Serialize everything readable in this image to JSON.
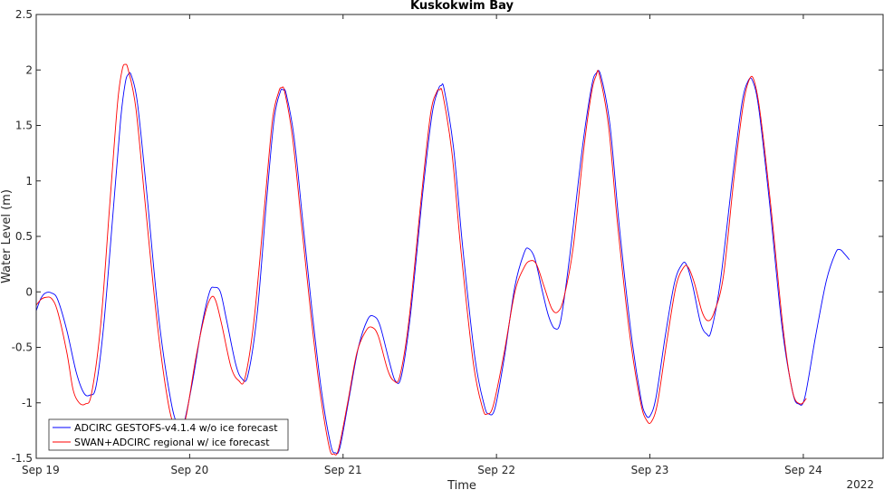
{
  "chart_data": {
    "type": "line",
    "title": "Kuskokwim Bay",
    "xlabel": "Time",
    "ylabel": "Water Level (m)",
    "x_unit": "days since Sep 19, 2022",
    "xlim": [
      0,
      5.52
    ],
    "ylim": [
      -1.5,
      2.5
    ],
    "xticks": [
      {
        "label": "Sep 19",
        "value": 0
      },
      {
        "label": "Sep 20",
        "value": 1
      },
      {
        "label": "Sep 21",
        "value": 2
      },
      {
        "label": "Sep 22",
        "value": 3
      },
      {
        "label": "Sep 23",
        "value": 4
      },
      {
        "label": "Sep 24",
        "value": 5
      }
    ],
    "year_label": "2022",
    "yticks": [
      -1.5,
      -1,
      -0.5,
      0,
      0.5,
      1,
      1.5,
      2,
      2.5
    ],
    "legend_position": "bottom-left",
    "grid": false,
    "series": [
      {
        "name": "ADCIRC GESTOFS-v4.1.4 w/o ice forecast",
        "color": "#0000ff",
        "points": [
          [
            0.0,
            -0.17
          ],
          [
            0.03,
            -0.06
          ],
          [
            0.06,
            -0.01
          ],
          [
            0.1,
            -0.01
          ],
          [
            0.14,
            -0.07
          ],
          [
            0.2,
            -0.35
          ],
          [
            0.26,
            -0.72
          ],
          [
            0.31,
            -0.91
          ],
          [
            0.35,
            -0.93
          ],
          [
            0.39,
            -0.85
          ],
          [
            0.44,
            -0.3
          ],
          [
            0.5,
            0.7
          ],
          [
            0.55,
            1.55
          ],
          [
            0.58,
            1.88
          ],
          [
            0.6,
            1.96
          ],
          [
            0.62,
            1.95
          ],
          [
            0.66,
            1.7
          ],
          [
            0.72,
            0.9
          ],
          [
            0.8,
            -0.25
          ],
          [
            0.88,
            -1.0
          ],
          [
            0.93,
            -1.22
          ],
          [
            0.96,
            -1.2
          ],
          [
            1.02,
            -0.8
          ],
          [
            1.08,
            -0.3
          ],
          [
            1.13,
            0.0
          ],
          [
            1.16,
            0.04
          ],
          [
            1.2,
            0.0
          ],
          [
            1.24,
            -0.25
          ],
          [
            1.3,
            -0.65
          ],
          [
            1.34,
            -0.78
          ],
          [
            1.38,
            -0.75
          ],
          [
            1.44,
            -0.2
          ],
          [
            1.5,
            0.8
          ],
          [
            1.55,
            1.55
          ],
          [
            1.59,
            1.8
          ],
          [
            1.61,
            1.82
          ],
          [
            1.63,
            1.78
          ],
          [
            1.68,
            1.4
          ],
          [
            1.74,
            0.6
          ],
          [
            1.8,
            -0.2
          ],
          [
            1.86,
            -0.9
          ],
          [
            1.92,
            -1.38
          ],
          [
            1.95,
            -1.45
          ],
          [
            1.98,
            -1.4
          ],
          [
            2.04,
            -0.95
          ],
          [
            2.1,
            -0.5
          ],
          [
            2.16,
            -0.25
          ],
          [
            2.2,
            -0.22
          ],
          [
            2.24,
            -0.3
          ],
          [
            2.3,
            -0.62
          ],
          [
            2.34,
            -0.8
          ],
          [
            2.38,
            -0.76
          ],
          [
            2.44,
            -0.2
          ],
          [
            2.52,
            0.9
          ],
          [
            2.58,
            1.6
          ],
          [
            2.62,
            1.82
          ],
          [
            2.64,
            1.86
          ],
          [
            2.66,
            1.82
          ],
          [
            2.72,
            1.3
          ],
          [
            2.78,
            0.4
          ],
          [
            2.86,
            -0.6
          ],
          [
            2.92,
            -1.02
          ],
          [
            2.95,
            -1.1
          ],
          [
            2.99,
            -1.05
          ],
          [
            3.05,
            -0.6
          ],
          [
            3.12,
            0.05
          ],
          [
            3.18,
            0.35
          ],
          [
            3.21,
            0.39
          ],
          [
            3.25,
            0.3
          ],
          [
            3.3,
            0.0
          ],
          [
            3.34,
            -0.22
          ],
          [
            3.38,
            -0.33
          ],
          [
            3.42,
            -0.25
          ],
          [
            3.48,
            0.35
          ],
          [
            3.56,
            1.3
          ],
          [
            3.62,
            1.85
          ],
          [
            3.65,
            1.97
          ],
          [
            3.68,
            1.95
          ],
          [
            3.74,
            1.5
          ],
          [
            3.8,
            0.6
          ],
          [
            3.88,
            -0.4
          ],
          [
            3.94,
            -0.95
          ],
          [
            3.97,
            -1.1
          ],
          [
            4.0,
            -1.12
          ],
          [
            4.04,
            -0.95
          ],
          [
            4.1,
            -0.4
          ],
          [
            4.16,
            0.08
          ],
          [
            4.21,
            0.25
          ],
          [
            4.24,
            0.24
          ],
          [
            4.28,
            0.05
          ],
          [
            4.33,
            -0.28
          ],
          [
            4.37,
            -0.38
          ],
          [
            4.4,
            -0.35
          ],
          [
            4.46,
            0.1
          ],
          [
            4.54,
            1.05
          ],
          [
            4.6,
            1.7
          ],
          [
            4.64,
            1.9
          ],
          [
            4.67,
            1.9
          ],
          [
            4.71,
            1.65
          ],
          [
            4.78,
            0.8
          ],
          [
            4.86,
            -0.3
          ],
          [
            4.93,
            -0.9
          ],
          [
            4.97,
            -1.01
          ],
          [
            5.01,
            -0.95
          ],
          [
            5.08,
            -0.4
          ],
          [
            5.15,
            0.1
          ],
          [
            5.21,
            0.35
          ],
          [
            5.24,
            0.38
          ],
          [
            5.27,
            0.34
          ],
          [
            5.3,
            0.29
          ]
        ]
      },
      {
        "name": "SWAN+ADCIRC regional w/ ice forecast",
        "color": "#ff0000",
        "points": [
          [
            0.0,
            -0.12
          ],
          [
            0.03,
            -0.07
          ],
          [
            0.06,
            -0.05
          ],
          [
            0.1,
            -0.06
          ],
          [
            0.14,
            -0.18
          ],
          [
            0.2,
            -0.55
          ],
          [
            0.24,
            -0.88
          ],
          [
            0.28,
            -1.0
          ],
          [
            0.32,
            -1.01
          ],
          [
            0.36,
            -0.92
          ],
          [
            0.42,
            -0.3
          ],
          [
            0.48,
            0.8
          ],
          [
            0.53,
            1.7
          ],
          [
            0.56,
            2.0
          ],
          [
            0.58,
            2.05
          ],
          [
            0.6,
            2.0
          ],
          [
            0.65,
            1.65
          ],
          [
            0.71,
            0.8
          ],
          [
            0.79,
            -0.3
          ],
          [
            0.86,
            -1.0
          ],
          [
            0.91,
            -1.25
          ],
          [
            0.94,
            -1.28
          ],
          [
            0.98,
            -1.1
          ],
          [
            1.04,
            -0.6
          ],
          [
            1.1,
            -0.2
          ],
          [
            1.14,
            -0.05
          ],
          [
            1.17,
            -0.08
          ],
          [
            1.21,
            -0.3
          ],
          [
            1.27,
            -0.68
          ],
          [
            1.32,
            -0.8
          ],
          [
            1.36,
            -0.78
          ],
          [
            1.42,
            -0.25
          ],
          [
            1.49,
            0.8
          ],
          [
            1.54,
            1.55
          ],
          [
            1.58,
            1.8
          ],
          [
            1.6,
            1.84
          ],
          [
            1.62,
            1.8
          ],
          [
            1.67,
            1.4
          ],
          [
            1.73,
            0.6
          ],
          [
            1.79,
            -0.2
          ],
          [
            1.85,
            -0.9
          ],
          [
            1.91,
            -1.4
          ],
          [
            1.94,
            -1.46
          ],
          [
            1.97,
            -1.42
          ],
          [
            2.03,
            -1.0
          ],
          [
            2.09,
            -0.55
          ],
          [
            2.15,
            -0.35
          ],
          [
            2.19,
            -0.32
          ],
          [
            2.23,
            -0.4
          ],
          [
            2.29,
            -0.7
          ],
          [
            2.33,
            -0.8
          ],
          [
            2.37,
            -0.76
          ],
          [
            2.43,
            -0.25
          ],
          [
            2.51,
            0.85
          ],
          [
            2.57,
            1.6
          ],
          [
            2.61,
            1.8
          ],
          [
            2.63,
            1.82
          ],
          [
            2.65,
            1.78
          ],
          [
            2.71,
            1.25
          ],
          [
            2.77,
            0.35
          ],
          [
            2.85,
            -0.65
          ],
          [
            2.91,
            -1.05
          ],
          [
            2.94,
            -1.1
          ],
          [
            2.98,
            -1.02
          ],
          [
            3.05,
            -0.55
          ],
          [
            3.12,
            0.0
          ],
          [
            3.18,
            0.22
          ],
          [
            3.22,
            0.28
          ],
          [
            3.26,
            0.25
          ],
          [
            3.31,
            0.05
          ],
          [
            3.36,
            -0.15
          ],
          [
            3.4,
            -0.18
          ],
          [
            3.44,
            -0.05
          ],
          [
            3.5,
            0.4
          ],
          [
            3.57,
            1.3
          ],
          [
            3.62,
            1.8
          ],
          [
            3.65,
            1.95
          ],
          [
            3.67,
            1.96
          ],
          [
            3.73,
            1.5
          ],
          [
            3.79,
            0.6
          ],
          [
            3.87,
            -0.4
          ],
          [
            3.94,
            -1.0
          ],
          [
            3.98,
            -1.16
          ],
          [
            4.01,
            -1.17
          ],
          [
            4.05,
            -1.0
          ],
          [
            4.11,
            -0.45
          ],
          [
            4.17,
            0.05
          ],
          [
            4.22,
            0.22
          ],
          [
            4.25,
            0.22
          ],
          [
            4.29,
            0.08
          ],
          [
            4.34,
            -0.18
          ],
          [
            4.38,
            -0.26
          ],
          [
            4.42,
            -0.18
          ],
          [
            4.48,
            0.15
          ],
          [
            4.55,
            1.05
          ],
          [
            4.61,
            1.7
          ],
          [
            4.65,
            1.92
          ],
          [
            4.68,
            1.9
          ],
          [
            4.72,
            1.6
          ],
          [
            4.79,
            0.75
          ],
          [
            4.87,
            -0.35
          ],
          [
            4.93,
            -0.9
          ],
          [
            4.98,
            -1.01
          ],
          [
            5.02,
            -0.96
          ]
        ]
      }
    ]
  }
}
